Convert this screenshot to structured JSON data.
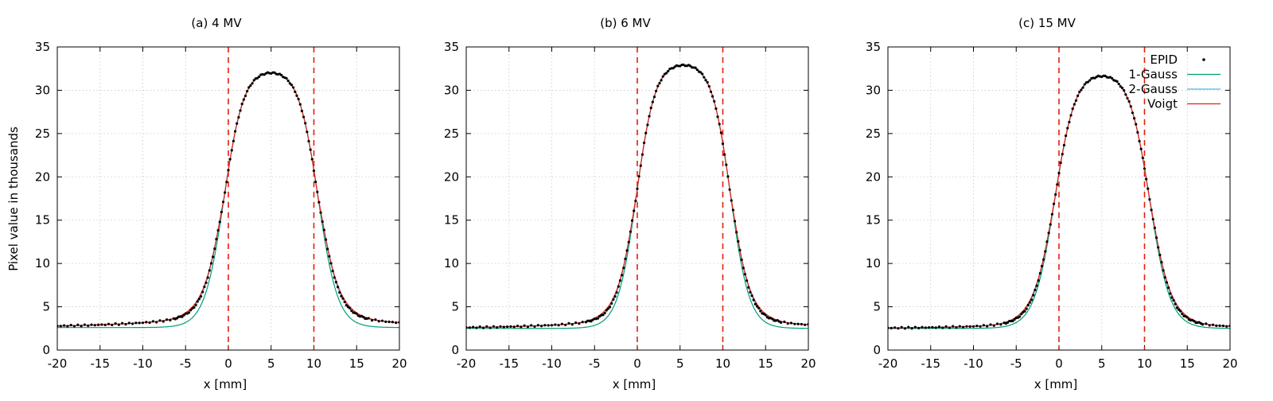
{
  "chart_data": [
    {
      "type": "line",
      "title": "(a) 4 MV",
      "xlabel": "x [mm]",
      "ylabel": "Pixel value in thousands",
      "xlim": [
        -20,
        20
      ],
      "ylim": [
        0,
        35
      ],
      "xticks": [
        "-20",
        "-15",
        "-10",
        "-5",
        "0",
        "5",
        "10",
        "15",
        "20"
      ],
      "yticks": [
        "0",
        "5",
        "10",
        "15",
        "20",
        "25",
        "30",
        "35"
      ],
      "grid": true,
      "vlines": [
        0,
        10
      ],
      "profile": {
        "base": 2.6,
        "top": 32.5,
        "left_edge": -0.5,
        "right_edge": 10.5,
        "width": 1.15,
        "tail_amp": 1.6,
        "tail_width": 9
      },
      "series": [
        {
          "name": "EPID",
          "style": "points",
          "color": "#000000"
        },
        {
          "name": "1-Gauss",
          "style": "line",
          "color": "#009e73"
        },
        {
          "name": "2-Gauss",
          "style": "line",
          "color": "#56b4e9"
        },
        {
          "name": "Voigt",
          "style": "line",
          "color": "#e51e10"
        }
      ],
      "legend": "none"
    },
    {
      "type": "line",
      "title": "(b) 6 MV",
      "xlabel": "x [mm]",
      "ylabel": "",
      "xlim": [
        -20,
        20
      ],
      "ylim": [
        0,
        35
      ],
      "xticks": [
        "-20",
        "-15",
        "-10",
        "-5",
        "0",
        "5",
        "10",
        "15",
        "20"
      ],
      "yticks": [
        "0",
        "5",
        "10",
        "15",
        "20",
        "25",
        "30",
        "35"
      ],
      "grid": true,
      "vlines": [
        0,
        10
      ],
      "profile": {
        "base": 2.5,
        "top": 33.3,
        "left_edge": -0.1,
        "right_edge": 10.9,
        "width": 1.1,
        "tail_amp": 1.3,
        "tail_width": 8
      },
      "series": [
        {
          "name": "EPID",
          "style": "points",
          "color": "#000000"
        },
        {
          "name": "1-Gauss",
          "style": "line",
          "color": "#009e73"
        },
        {
          "name": "2-Gauss",
          "style": "line",
          "color": "#56b4e9"
        },
        {
          "name": "Voigt",
          "style": "line",
          "color": "#e51e10"
        }
      ],
      "legend": "none"
    },
    {
      "type": "line",
      "title": "(c) 15 MV",
      "xlabel": "x [mm]",
      "ylabel": "",
      "xlim": [
        -20,
        20
      ],
      "ylim": [
        0,
        35
      ],
      "xticks": [
        "-20",
        "-15",
        "-10",
        "-5",
        "0",
        "5",
        "10",
        "15",
        "20"
      ],
      "yticks": [
        "0",
        "5",
        "10",
        "15",
        "20",
        "25",
        "30",
        "35"
      ],
      "grid": true,
      "vlines": [
        0,
        10
      ],
      "profile": {
        "base": 2.5,
        "top": 32.2,
        "left_edge": -0.5,
        "right_edge": 10.6,
        "width": 1.2,
        "tail_amp": 0.9,
        "tail_width": 7
      },
      "series": [
        {
          "name": "EPID",
          "style": "points",
          "color": "#000000"
        },
        {
          "name": "1-Gauss",
          "style": "line",
          "color": "#009e73"
        },
        {
          "name": "2-Gauss",
          "style": "line",
          "color": "#56b4e9"
        },
        {
          "name": "Voigt",
          "style": "line",
          "color": "#e51e10"
        }
      ],
      "legend": "top-right"
    }
  ]
}
